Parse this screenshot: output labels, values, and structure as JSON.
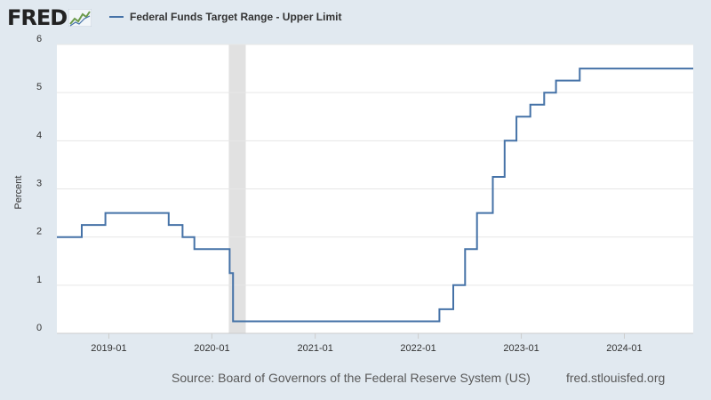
{
  "header": {
    "logo_text": "FRED",
    "legend_label": "Federal Funds Target Range - Upper Limit"
  },
  "footer": {
    "source": "Source: Board of Governors of the Federal Reserve System (US)",
    "site": "fred.stlouisfed.org"
  },
  "colors": {
    "series": "#4572a7",
    "recession": "#e1e1e1",
    "plot_bg": "#ffffff",
    "page_bg": "#e1e9f0"
  },
  "chart_data": {
    "type": "line",
    "step": true,
    "title": "",
    "xlabel": "",
    "ylabel": "Percent",
    "xlim": [
      "2018-07-01",
      "2024-09-01"
    ],
    "ylim": [
      0,
      6
    ],
    "yticks": [
      0,
      1,
      2,
      3,
      4,
      5,
      6
    ],
    "xticks": [
      "2019-01",
      "2020-01",
      "2021-01",
      "2022-01",
      "2023-01",
      "2024-01"
    ],
    "grid": true,
    "legend_position": "top-left",
    "recession_shading": [
      {
        "start": "2020-03-01",
        "end": "2020-04-30"
      }
    ],
    "series": [
      {
        "name": "Federal Funds Target Range - Upper Limit",
        "points": [
          [
            "2018-07-01",
            2.0
          ],
          [
            "2018-09-27",
            2.25
          ],
          [
            "2018-12-20",
            2.5
          ],
          [
            "2019-08-01",
            2.25
          ],
          [
            "2019-09-19",
            2.0
          ],
          [
            "2019-10-31",
            1.75
          ],
          [
            "2020-03-04",
            1.25
          ],
          [
            "2020-03-16",
            0.25
          ],
          [
            "2022-03-17",
            0.5
          ],
          [
            "2022-05-05",
            1.0
          ],
          [
            "2022-06-16",
            1.75
          ],
          [
            "2022-07-28",
            2.5
          ],
          [
            "2022-09-22",
            3.25
          ],
          [
            "2022-11-03",
            4.0
          ],
          [
            "2022-12-15",
            4.5
          ],
          [
            "2023-02-02",
            4.75
          ],
          [
            "2023-03-23",
            5.0
          ],
          [
            "2023-05-04",
            5.25
          ],
          [
            "2023-07-27",
            5.5
          ],
          [
            "2024-09-01",
            5.5
          ]
        ]
      }
    ]
  }
}
